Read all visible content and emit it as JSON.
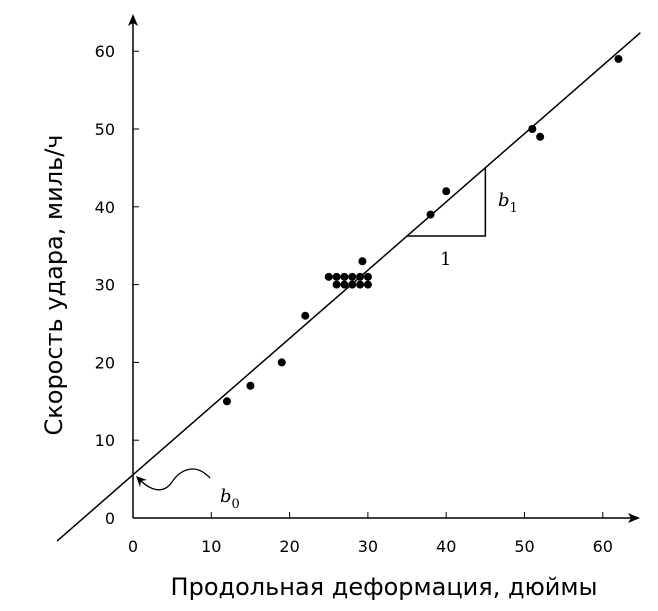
{
  "chart_data": {
    "type": "scatter",
    "title": "",
    "xlabel": "Продольная деформация, дюймы",
    "ylabel": "Скорость удара, миль/ч",
    "xlim": [
      0,
      64
    ],
    "ylim": [
      0,
      62
    ],
    "xticks": [
      0,
      10,
      20,
      30,
      40,
      50,
      60
    ],
    "yticks": [
      0,
      10,
      20,
      30,
      40,
      50,
      60
    ],
    "grid": false,
    "points": [
      [
        12,
        15
      ],
      [
        15,
        17
      ],
      [
        19,
        20
      ],
      [
        22,
        26
      ],
      [
        25,
        31
      ],
      [
        26,
        31
      ],
      [
        27,
        31
      ],
      [
        28,
        31
      ],
      [
        29,
        31
      ],
      [
        30,
        31
      ],
      [
        26,
        30
      ],
      [
        27,
        30
      ],
      [
        28,
        30
      ],
      [
        29,
        30
      ],
      [
        30,
        30
      ],
      [
        29.3,
        33
      ],
      [
        38,
        39
      ],
      [
        40,
        42
      ],
      [
        51,
        50
      ],
      [
        52,
        49
      ],
      [
        62,
        59
      ]
    ],
    "fit_line": {
      "intercept": 5.55,
      "slope": 0.877,
      "x_range": [
        -9.7,
        64.8
      ]
    },
    "slope_triangle": {
      "x": [
        35,
        45
      ],
      "label_run": "1",
      "label_rise": "b",
      "label_rise_sub": "1"
    },
    "intercept_label": "b",
    "intercept_label_sub": "0"
  }
}
